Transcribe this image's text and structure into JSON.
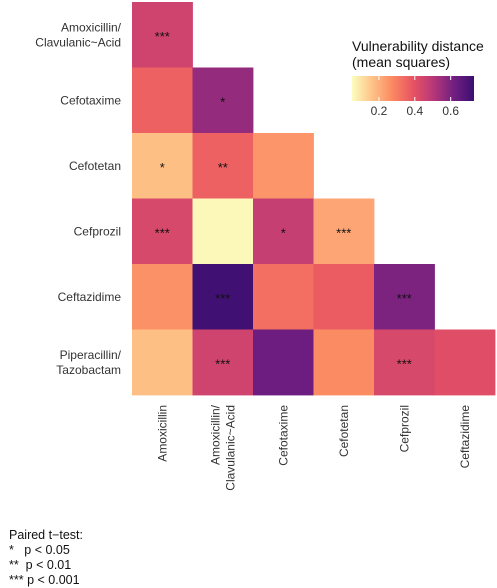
{
  "chart_data": {
    "type": "heatmap",
    "title": "",
    "rows": [
      "Amoxicillin/\nClavulanic~Acid",
      "Cefotaxime",
      "Cefotetan",
      "Cefprozil",
      "Ceftazidime",
      "Piperacillin/\nTazobactam"
    ],
    "columns": [
      "Amoxicillin",
      "Amoxicillin/\nClavulanic~Acid",
      "Cefotaxime",
      "Cefotetan",
      "Cefprozil",
      "Ceftazidime"
    ],
    "cells": [
      {
        "row": 0,
        "col": 0,
        "value": 0.45,
        "label": "***"
      },
      {
        "row": 1,
        "col": 0,
        "value": 0.36,
        "label": ""
      },
      {
        "row": 1,
        "col": 1,
        "value": 0.56,
        "label": "*"
      },
      {
        "row": 2,
        "col": 0,
        "value": 0.17,
        "label": "*"
      },
      {
        "row": 2,
        "col": 1,
        "value": 0.36,
        "label": "**"
      },
      {
        "row": 2,
        "col": 2,
        "value": 0.25,
        "label": ""
      },
      {
        "row": 3,
        "col": 0,
        "value": 0.43,
        "label": "***"
      },
      {
        "row": 3,
        "col": 1,
        "value": 0.06,
        "label": ""
      },
      {
        "row": 3,
        "col": 2,
        "value": 0.47,
        "label": "*"
      },
      {
        "row": 3,
        "col": 3,
        "value": 0.22,
        "label": "***"
      },
      {
        "row": 4,
        "col": 0,
        "value": 0.26,
        "label": ""
      },
      {
        "row": 4,
        "col": 1,
        "value": 0.72,
        "label": "***"
      },
      {
        "row": 4,
        "col": 2,
        "value": 0.33,
        "label": ""
      },
      {
        "row": 4,
        "col": 3,
        "value": 0.37,
        "label": ""
      },
      {
        "row": 4,
        "col": 4,
        "value": 0.6,
        "label": "***"
      },
      {
        "row": 5,
        "col": 0,
        "value": 0.17,
        "label": ""
      },
      {
        "row": 5,
        "col": 1,
        "value": 0.45,
        "label": "***"
      },
      {
        "row": 5,
        "col": 2,
        "value": 0.63,
        "label": ""
      },
      {
        "row": 5,
        "col": 3,
        "value": 0.27,
        "label": ""
      },
      {
        "row": 5,
        "col": 4,
        "value": 0.43,
        "label": "***"
      },
      {
        "row": 5,
        "col": 5,
        "value": 0.41,
        "label": ""
      }
    ],
    "legend": {
      "title": "Vulnerability distance\n(mean squares)",
      "placement": "top-right",
      "ticks": [
        0.2,
        0.4,
        0.6
      ],
      "range": [
        0.05,
        0.73
      ],
      "colorscale": [
        "#fcfdbf",
        "#fec287",
        "#fb8861",
        "#e85362",
        "#b73779",
        "#721f81",
        "#3b0f70"
      ]
    }
  },
  "notes": {
    "title": "Paired t−test:",
    "lines": [
      "*   p < 0.05",
      "**  p < 0.01",
      "*** p < 0.001"
    ]
  }
}
